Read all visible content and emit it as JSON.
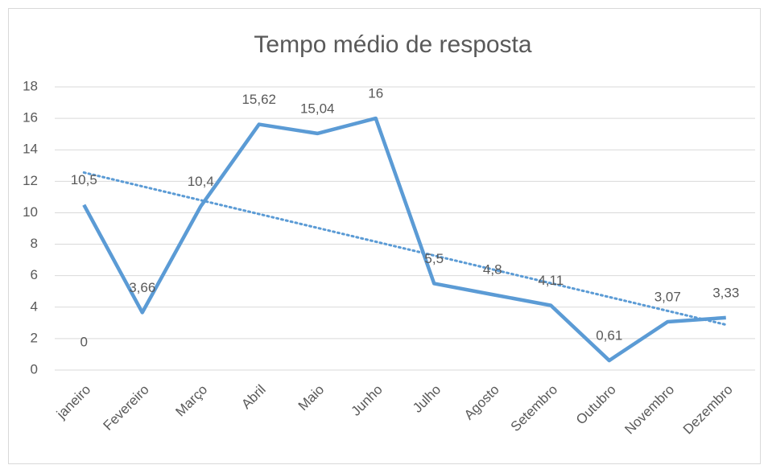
{
  "chart_data": {
    "type": "line",
    "title": "Tempo médio de resposta",
    "categories": [
      "janeiro",
      "Fevereiro",
      "Março",
      "Abril",
      "Maio",
      "Junho",
      "Julho",
      "Agosto",
      "Setembro",
      "Outubro",
      "Novembro",
      "Dezembro"
    ],
    "values": [
      10.5,
      3.66,
      10.4,
      15.62,
      15.04,
      16,
      5.5,
      4.8,
      4.11,
      0.61,
      3.07,
      3.33
    ],
    "value_labels": [
      "10,5",
      "3,66",
      "10,4",
      "15,62",
      "15,04",
      "16",
      "5,5",
      "4,8",
      "4,11",
      "0,61",
      "3,07",
      "3,33"
    ],
    "color": "#5b9bd5",
    "trendline": "linear",
    "annotations": [
      {
        "text": "0"
      }
    ],
    "ylim": [
      0,
      18
    ],
    "yticks": [
      0,
      2,
      4,
      6,
      8,
      10,
      12,
      14,
      16,
      18
    ],
    "grid": true
  }
}
